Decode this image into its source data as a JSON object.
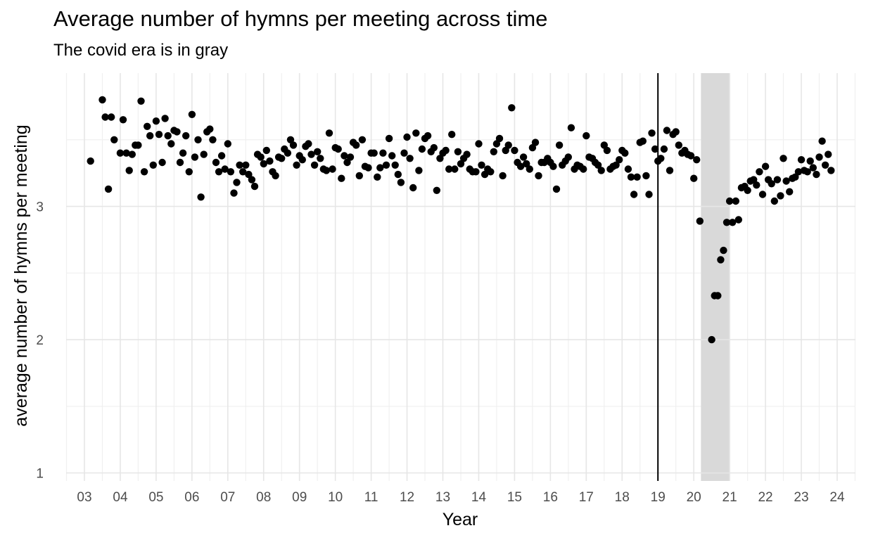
{
  "chart_data": {
    "type": "scatter",
    "title": "Average number of hymns per meeting across time",
    "subtitle": "The covid era is in gray",
    "xlabel": "Year",
    "ylabel": "average number of hymns per meeting",
    "x_ticks": [
      "03",
      "04",
      "05",
      "06",
      "07",
      "08",
      "09",
      "10",
      "11",
      "12",
      "13",
      "14",
      "15",
      "16",
      "17",
      "18",
      "19",
      "20",
      "21",
      "22",
      "23",
      "24"
    ],
    "y_ticks": [
      1,
      2,
      3
    ],
    "xlim": [
      2002.5,
      2024.5
    ],
    "ylim": [
      0.94,
      4.0
    ],
    "grid": true,
    "covid_band": {
      "start": 2020.2,
      "end": 2021.0,
      "color": "#d9d9d9"
    },
    "reference_line_x": 2019.0,
    "point_color": "#000000",
    "points": [
      [
        2003.17,
        3.34
      ],
      [
        2003.5,
        3.8
      ],
      [
        2003.58,
        3.67
      ],
      [
        2003.67,
        3.13
      ],
      [
        2003.75,
        3.67
      ],
      [
        2003.83,
        3.5
      ],
      [
        2004.0,
        3.4
      ],
      [
        2004.08,
        3.65
      ],
      [
        2004.17,
        3.4
      ],
      [
        2004.25,
        3.27
      ],
      [
        2004.33,
        3.39
      ],
      [
        2004.42,
        3.46
      ],
      [
        2004.5,
        3.46
      ],
      [
        2004.58,
        3.79
      ],
      [
        2004.67,
        3.26
      ],
      [
        2004.75,
        3.6
      ],
      [
        2004.83,
        3.53
      ],
      [
        2004.92,
        3.31
      ],
      [
        2005.0,
        3.64
      ],
      [
        2005.08,
        3.54
      ],
      [
        2005.17,
        3.33
      ],
      [
        2005.25,
        3.66
      ],
      [
        2005.33,
        3.53
      ],
      [
        2005.42,
        3.47
      ],
      [
        2005.5,
        3.57
      ],
      [
        2005.58,
        3.56
      ],
      [
        2005.67,
        3.33
      ],
      [
        2005.75,
        3.4
      ],
      [
        2005.83,
        3.53
      ],
      [
        2005.92,
        3.26
      ],
      [
        2006.0,
        3.69
      ],
      [
        2006.08,
        3.37
      ],
      [
        2006.17,
        3.5
      ],
      [
        2006.25,
        3.07
      ],
      [
        2006.33,
        3.39
      ],
      [
        2006.42,
        3.56
      ],
      [
        2006.5,
        3.58
      ],
      [
        2006.58,
        3.5
      ],
      [
        2006.67,
        3.33
      ],
      [
        2006.75,
        3.26
      ],
      [
        2006.83,
        3.38
      ],
      [
        2006.92,
        3.28
      ],
      [
        2007.0,
        3.47
      ],
      [
        2007.08,
        3.26
      ],
      [
        2007.17,
        3.1
      ],
      [
        2007.25,
        3.18
      ],
      [
        2007.33,
        3.31
      ],
      [
        2007.42,
        3.26
      ],
      [
        2007.5,
        3.31
      ],
      [
        2007.58,
        3.24
      ],
      [
        2007.67,
        3.2
      ],
      [
        2007.75,
        3.15
      ],
      [
        2007.83,
        3.39
      ],
      [
        2007.92,
        3.37
      ],
      [
        2008.0,
        3.32
      ],
      [
        2008.08,
        3.42
      ],
      [
        2008.17,
        3.34
      ],
      [
        2008.25,
        3.26
      ],
      [
        2008.33,
        3.23
      ],
      [
        2008.42,
        3.37
      ],
      [
        2008.5,
        3.36
      ],
      [
        2008.58,
        3.43
      ],
      [
        2008.67,
        3.4
      ],
      [
        2008.75,
        3.5
      ],
      [
        2008.83,
        3.46
      ],
      [
        2008.92,
        3.31
      ],
      [
        2009.0,
        3.38
      ],
      [
        2009.08,
        3.35
      ],
      [
        2009.17,
        3.45
      ],
      [
        2009.25,
        3.47
      ],
      [
        2009.33,
        3.39
      ],
      [
        2009.42,
        3.31
      ],
      [
        2009.5,
        3.41
      ],
      [
        2009.58,
        3.36
      ],
      [
        2009.67,
        3.28
      ],
      [
        2009.75,
        3.27
      ],
      [
        2009.83,
        3.55
      ],
      [
        2009.92,
        3.28
      ],
      [
        2010.0,
        3.44
      ],
      [
        2010.08,
        3.43
      ],
      [
        2010.17,
        3.21
      ],
      [
        2010.25,
        3.38
      ],
      [
        2010.33,
        3.33
      ],
      [
        2010.42,
        3.37
      ],
      [
        2010.5,
        3.48
      ],
      [
        2010.58,
        3.46
      ],
      [
        2010.67,
        3.23
      ],
      [
        2010.75,
        3.5
      ],
      [
        2010.83,
        3.3
      ],
      [
        2010.92,
        3.29
      ],
      [
        2011.0,
        3.4
      ],
      [
        2011.08,
        3.4
      ],
      [
        2011.17,
        3.22
      ],
      [
        2011.25,
        3.29
      ],
      [
        2011.33,
        3.4
      ],
      [
        2011.42,
        3.31
      ],
      [
        2011.5,
        3.51
      ],
      [
        2011.58,
        3.38
      ],
      [
        2011.67,
        3.31
      ],
      [
        2011.75,
        3.24
      ],
      [
        2011.83,
        3.18
      ],
      [
        2011.92,
        3.4
      ],
      [
        2012.0,
        3.52
      ],
      [
        2012.08,
        3.36
      ],
      [
        2012.17,
        3.14
      ],
      [
        2012.25,
        3.55
      ],
      [
        2012.33,
        3.27
      ],
      [
        2012.42,
        3.43
      ],
      [
        2012.5,
        3.51
      ],
      [
        2012.58,
        3.53
      ],
      [
        2012.67,
        3.41
      ],
      [
        2012.75,
        3.44
      ],
      [
        2012.83,
        3.12
      ],
      [
        2012.92,
        3.36
      ],
      [
        2013.0,
        3.4
      ],
      [
        2013.08,
        3.42
      ],
      [
        2013.17,
        3.28
      ],
      [
        2013.25,
        3.54
      ],
      [
        2013.33,
        3.28
      ],
      [
        2013.42,
        3.41
      ],
      [
        2013.5,
        3.32
      ],
      [
        2013.58,
        3.36
      ],
      [
        2013.67,
        3.39
      ],
      [
        2013.75,
        3.28
      ],
      [
        2013.83,
        3.26
      ],
      [
        2013.92,
        3.26
      ],
      [
        2014.0,
        3.47
      ],
      [
        2014.08,
        3.31
      ],
      [
        2014.17,
        3.24
      ],
      [
        2014.25,
        3.28
      ],
      [
        2014.33,
        3.26
      ],
      [
        2014.42,
        3.41
      ],
      [
        2014.5,
        3.47
      ],
      [
        2014.58,
        3.51
      ],
      [
        2014.67,
        3.23
      ],
      [
        2014.75,
        3.42
      ],
      [
        2014.83,
        3.46
      ],
      [
        2014.92,
        3.74
      ],
      [
        2015.0,
        3.42
      ],
      [
        2015.08,
        3.33
      ],
      [
        2015.17,
        3.3
      ],
      [
        2015.25,
        3.37
      ],
      [
        2015.33,
        3.32
      ],
      [
        2015.42,
        3.28
      ],
      [
        2015.5,
        3.44
      ],
      [
        2015.58,
        3.48
      ],
      [
        2015.67,
        3.23
      ],
      [
        2015.75,
        3.33
      ],
      [
        2015.83,
        3.33
      ],
      [
        2015.92,
        3.36
      ],
      [
        2016.0,
        3.33
      ],
      [
        2016.08,
        3.3
      ],
      [
        2016.17,
        3.13
      ],
      [
        2016.25,
        3.46
      ],
      [
        2016.33,
        3.31
      ],
      [
        2016.42,
        3.34
      ],
      [
        2016.5,
        3.37
      ],
      [
        2016.58,
        3.59
      ],
      [
        2016.67,
        3.28
      ],
      [
        2016.75,
        3.31
      ],
      [
        2016.83,
        3.3
      ],
      [
        2016.92,
        3.28
      ],
      [
        2017.0,
        3.53
      ],
      [
        2017.08,
        3.37
      ],
      [
        2017.17,
        3.36
      ],
      [
        2017.25,
        3.33
      ],
      [
        2017.33,
        3.31
      ],
      [
        2017.42,
        3.27
      ],
      [
        2017.5,
        3.46
      ],
      [
        2017.58,
        3.42
      ],
      [
        2017.67,
        3.28
      ],
      [
        2017.75,
        3.3
      ],
      [
        2017.83,
        3.31
      ],
      [
        2017.92,
        3.35
      ],
      [
        2018.0,
        3.42
      ],
      [
        2018.08,
        3.4
      ],
      [
        2018.17,
        3.28
      ],
      [
        2018.25,
        3.22
      ],
      [
        2018.33,
        3.09
      ],
      [
        2018.42,
        3.22
      ],
      [
        2018.5,
        3.48
      ],
      [
        2018.58,
        3.49
      ],
      [
        2018.67,
        3.23
      ],
      [
        2018.75,
        3.09
      ],
      [
        2018.83,
        3.55
      ],
      [
        2018.92,
        3.43
      ],
      [
        2019.0,
        3.34
      ],
      [
        2019.08,
        3.36
      ],
      [
        2019.17,
        3.43
      ],
      [
        2019.25,
        3.57
      ],
      [
        2019.33,
        3.27
      ],
      [
        2019.42,
        3.54
      ],
      [
        2019.5,
        3.56
      ],
      [
        2019.58,
        3.46
      ],
      [
        2019.67,
        3.4
      ],
      [
        2019.75,
        3.42
      ],
      [
        2019.83,
        3.39
      ],
      [
        2019.92,
        3.38
      ],
      [
        2020.0,
        3.21
      ],
      [
        2020.08,
        3.35
      ],
      [
        2020.17,
        2.89
      ],
      [
        2020.5,
        2.0
      ],
      [
        2020.58,
        2.33
      ],
      [
        2020.67,
        2.33
      ],
      [
        2020.75,
        2.6
      ],
      [
        2020.83,
        2.67
      ],
      [
        2020.92,
        2.88
      ],
      [
        2021.0,
        3.04
      ],
      [
        2021.08,
        2.88
      ],
      [
        2021.17,
        3.04
      ],
      [
        2021.25,
        2.9
      ],
      [
        2021.33,
        3.14
      ],
      [
        2021.42,
        3.15
      ],
      [
        2021.5,
        3.12
      ],
      [
        2021.58,
        3.19
      ],
      [
        2021.67,
        3.2
      ],
      [
        2021.75,
        3.16
      ],
      [
        2021.83,
        3.26
      ],
      [
        2021.92,
        3.09
      ],
      [
        2022.0,
        3.3
      ],
      [
        2022.08,
        3.2
      ],
      [
        2022.17,
        3.17
      ],
      [
        2022.25,
        3.04
      ],
      [
        2022.33,
        3.2
      ],
      [
        2022.42,
        3.08
      ],
      [
        2022.5,
        3.36
      ],
      [
        2022.58,
        3.19
      ],
      [
        2022.67,
        3.11
      ],
      [
        2022.75,
        3.21
      ],
      [
        2022.83,
        3.22
      ],
      [
        2022.92,
        3.26
      ],
      [
        2023.0,
        3.35
      ],
      [
        2023.08,
        3.27
      ],
      [
        2023.17,
        3.26
      ],
      [
        2023.25,
        3.34
      ],
      [
        2023.33,
        3.29
      ],
      [
        2023.42,
        3.24
      ],
      [
        2023.5,
        3.37
      ],
      [
        2023.58,
        3.49
      ],
      [
        2023.67,
        3.31
      ],
      [
        2023.75,
        3.39
      ],
      [
        2023.83,
        3.27
      ]
    ]
  }
}
